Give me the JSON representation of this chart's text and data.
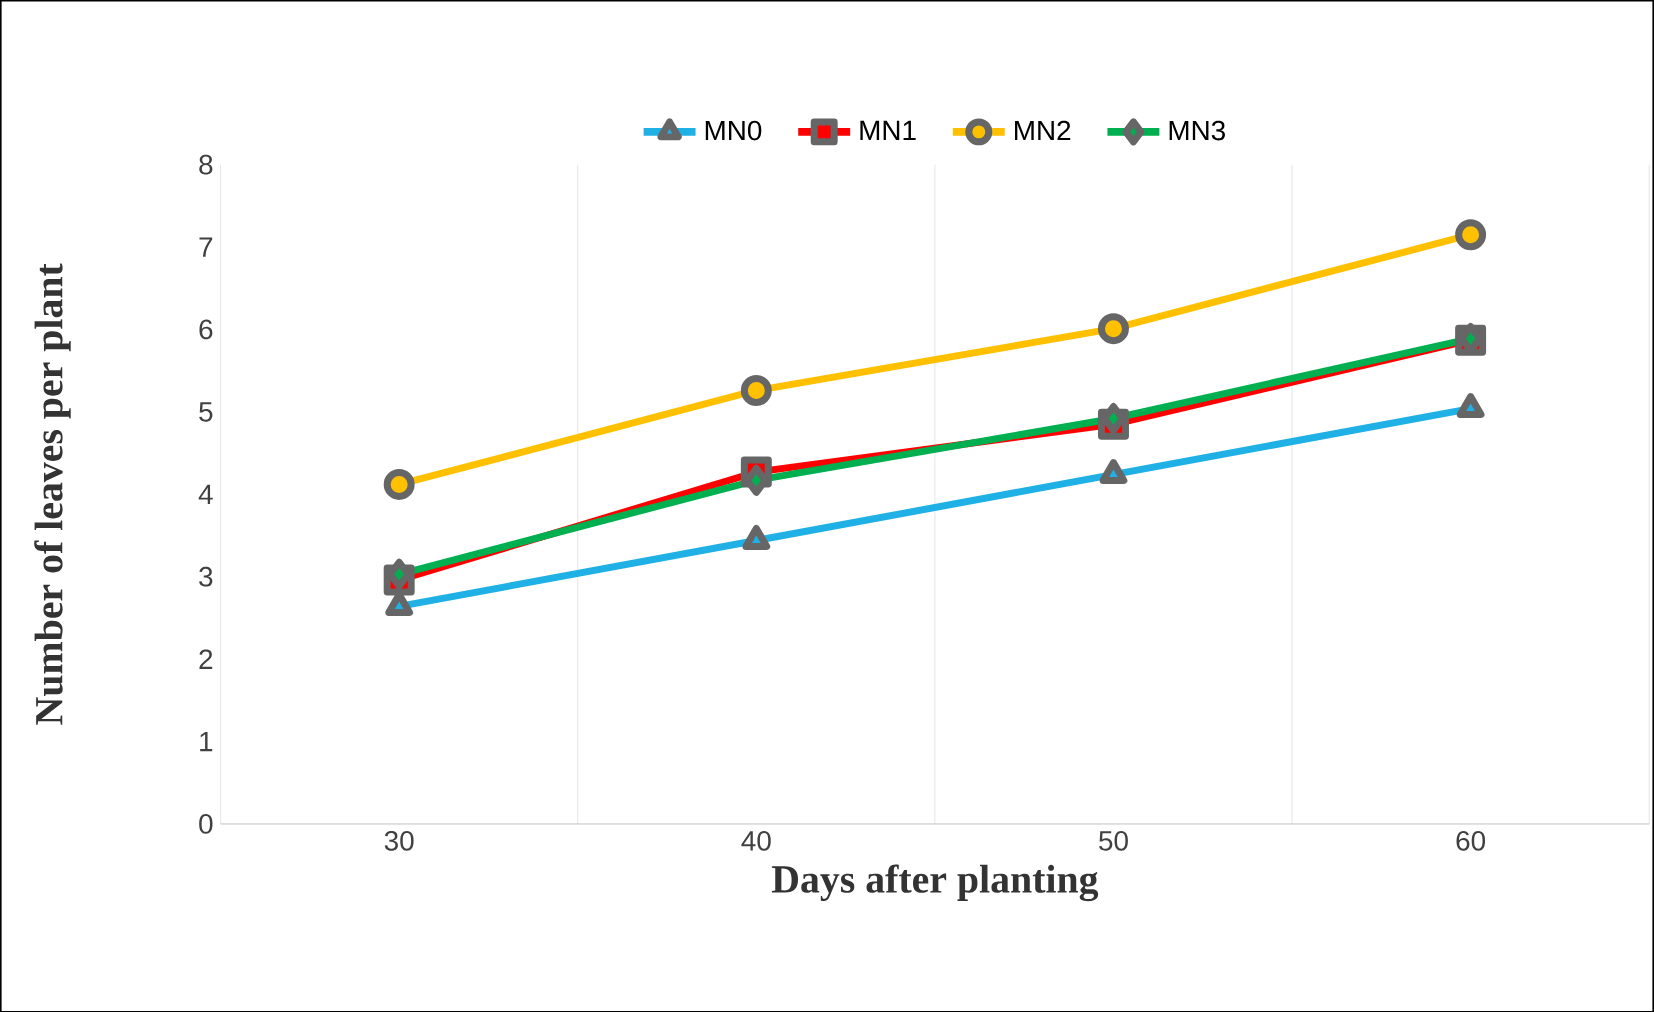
{
  "chart_data": {
    "type": "line",
    "xlabel": "Days after planting",
    "ylabel": "Number of leaves per plant",
    "categories": [
      "30",
      "40",
      "50",
      "60"
    ],
    "series": [
      {
        "name": "MN0",
        "color": "#1fb0e6",
        "marker": "triangle",
        "values": [
          2.64,
          3.44,
          4.24,
          5.04
        ]
      },
      {
        "name": "MN1",
        "color": "#ff0000",
        "marker": "square",
        "values": [
          2.96,
          4.27,
          4.85,
          5.87
        ]
      },
      {
        "name": "MN2",
        "color": "#ffc000",
        "marker": "circle",
        "values": [
          4.12,
          5.26,
          6.01,
          7.15
        ]
      },
      {
        "name": "MN3",
        "color": "#00b050",
        "marker": "diamond",
        "values": [
          3.03,
          4.17,
          4.92,
          5.89
        ]
      }
    ],
    "ylim": [
      0,
      8
    ],
    "yticks": [
      0,
      1,
      2,
      3,
      4,
      5,
      6,
      7,
      8
    ],
    "grid": "x",
    "legend": "top",
    "line_style": "solid"
  }
}
